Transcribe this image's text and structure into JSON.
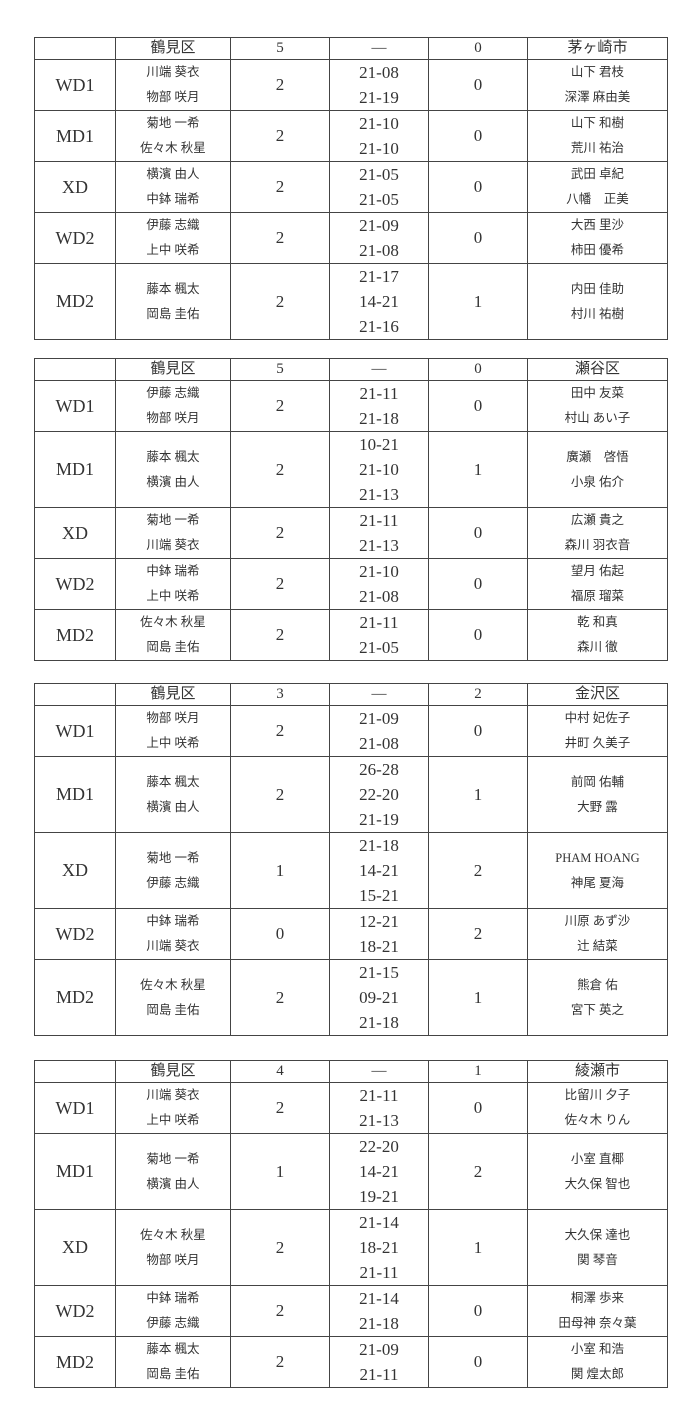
{
  "matches": [
    {
      "home": "鶴見区",
      "home_score": "5",
      "dash": "—",
      "away_score": "0",
      "away": "茅ヶ崎市",
      "games": [
        {
          "event": "WD1",
          "home_players": [
            "川端 葵衣",
            "物部 咲月"
          ],
          "home_games": "2",
          "scores": [
            "21-08",
            "21-19"
          ],
          "away_games": "0",
          "away_players": [
            "山下 君枝",
            "深澤 麻由美"
          ]
        },
        {
          "event": "MD1",
          "home_players": [
            "菊地 一希",
            "佐々木 秋星"
          ],
          "home_games": "2",
          "scores": [
            "21-10",
            "21-10"
          ],
          "away_games": "0",
          "away_players": [
            "山下 和樹",
            "荒川 祐治"
          ]
        },
        {
          "event": "XD",
          "home_players": [
            "横濱 由人",
            "中鉢 瑞希"
          ],
          "home_games": "2",
          "scores": [
            "21-05",
            "21-05"
          ],
          "away_games": "0",
          "away_players": [
            "武田 卓紀",
            "八幡　正美"
          ]
        },
        {
          "event": "WD2",
          "home_players": [
            "伊藤 志織",
            "上中 咲希"
          ],
          "home_games": "2",
          "scores": [
            "21-09",
            "21-08"
          ],
          "away_games": "0",
          "away_players": [
            "大西 里沙",
            "柿田 優希"
          ]
        },
        {
          "event": "MD2",
          "home_players": [
            "藤本 楓太",
            "岡島 圭佑"
          ],
          "home_games": "2",
          "scores": [
            "21-17",
            "14-21",
            "21-16"
          ],
          "away_games": "1",
          "away_players": [
            "内田 佳助",
            "村川 祐樹"
          ]
        }
      ]
    },
    {
      "home": "鶴見区",
      "home_score": "5",
      "dash": "—",
      "away_score": "0",
      "away": "瀬谷区",
      "games": [
        {
          "event": "WD1",
          "home_players": [
            "伊藤 志織",
            "物部 咲月"
          ],
          "home_games": "2",
          "scores": [
            "21-11",
            "21-18"
          ],
          "away_games": "0",
          "away_players": [
            "田中 友菜",
            "村山 あい子"
          ]
        },
        {
          "event": "MD1",
          "home_players": [
            "藤本 楓太",
            "横濱 由人"
          ],
          "home_games": "2",
          "scores": [
            "10-21",
            "21-10",
            "21-13"
          ],
          "away_games": "1",
          "away_players": [
            "廣瀬　啓悟",
            "小泉 佑介"
          ]
        },
        {
          "event": "XD",
          "home_players": [
            "菊地 一希",
            "川端 葵衣"
          ],
          "home_games": "2",
          "scores": [
            "21-11",
            "21-13"
          ],
          "away_games": "0",
          "away_players": [
            "広瀬 貴之",
            "森川 羽衣音"
          ]
        },
        {
          "event": "WD2",
          "home_players": [
            "中鉢 瑞希",
            "上中 咲希"
          ],
          "home_games": "2",
          "scores": [
            "21-10",
            "21-08"
          ],
          "away_games": "0",
          "away_players": [
            "望月 佑起",
            "福原 瑠菜"
          ]
        },
        {
          "event": "MD2",
          "home_players": [
            "佐々木 秋星",
            "岡島 圭佑"
          ],
          "home_games": "2",
          "scores": [
            "21-11",
            "21-05"
          ],
          "away_games": "0",
          "away_players": [
            "乾 和真",
            "森川 徹"
          ]
        }
      ]
    },
    {
      "home": "鶴見区",
      "home_score": "3",
      "dash": "—",
      "away_score": "2",
      "away": "金沢区",
      "games": [
        {
          "event": "WD1",
          "home_players": [
            "物部 咲月",
            "上中 咲希"
          ],
          "home_games": "2",
          "scores": [
            "21-09",
            "21-08"
          ],
          "away_games": "0",
          "away_players": [
            "中村 妃佐子",
            "井町 久美子"
          ]
        },
        {
          "event": "MD1",
          "home_players": [
            "藤本 楓太",
            "横濱 由人"
          ],
          "home_games": "2",
          "scores": [
            "26-28",
            "22-20",
            "21-19"
          ],
          "away_games": "1",
          "away_players": [
            "前岡 佑輔",
            "大野 露"
          ]
        },
        {
          "event": "XD",
          "home_players": [
            "菊地 一希",
            "伊藤 志織"
          ],
          "home_games": "1",
          "scores": [
            "21-18",
            "14-21",
            "15-21"
          ],
          "away_games": "2",
          "away_players": [
            "PHAM HOANG",
            "神尾 夏海"
          ]
        },
        {
          "event": "WD2",
          "home_players": [
            "中鉢 瑞希",
            "川端 葵衣"
          ],
          "home_games": "0",
          "scores": [
            "12-21",
            "18-21"
          ],
          "away_games": "2",
          "away_players": [
            "川原 あず沙",
            "辻 結菜"
          ]
        },
        {
          "event": "MD2",
          "home_players": [
            "佐々木 秋星",
            "岡島 圭佑"
          ],
          "home_games": "2",
          "scores": [
            "21-15",
            "09-21",
            "21-18"
          ],
          "away_games": "1",
          "away_players": [
            "熊倉 佑",
            "宮下 英之"
          ]
        }
      ]
    },
    {
      "home": "鶴見区",
      "home_score": "4",
      "dash": "—",
      "away_score": "1",
      "away": "綾瀬市",
      "games": [
        {
          "event": "WD1",
          "home_players": [
            "川端 葵衣",
            "上中 咲希"
          ],
          "home_games": "2",
          "scores": [
            "21-11",
            "21-13"
          ],
          "away_games": "0",
          "away_players": [
            "比留川 夕子",
            "佐々木 りん"
          ]
        },
        {
          "event": "MD1",
          "home_players": [
            "菊地 一希",
            "横濱 由人"
          ],
          "home_games": "1",
          "scores": [
            "22-20",
            "14-21",
            "19-21"
          ],
          "away_games": "2",
          "away_players": [
            "小室 直椰",
            "大久保 智也"
          ]
        },
        {
          "event": "XD",
          "home_players": [
            "佐々木 秋星",
            "物部 咲月"
          ],
          "home_games": "2",
          "scores": [
            "21-14",
            "18-21",
            "21-11"
          ],
          "away_games": "1",
          "away_players": [
            "大久保 達也",
            "関 琴音"
          ]
        },
        {
          "event": "WD2",
          "home_players": [
            "中鉢 瑞希",
            "伊藤 志織"
          ],
          "home_games": "2",
          "scores": [
            "21-14",
            "21-18"
          ],
          "away_games": "0",
          "away_players": [
            "桐澤 歩来",
            "田母神 奈々葉"
          ]
        },
        {
          "event": "MD2",
          "home_players": [
            "藤本 楓太",
            "岡島 圭佑"
          ],
          "home_games": "2",
          "scores": [
            "21-09",
            "21-11"
          ],
          "away_games": "0",
          "away_players": [
            "小室 和浩",
            "関 煌太郎"
          ]
        }
      ]
    }
  ]
}
